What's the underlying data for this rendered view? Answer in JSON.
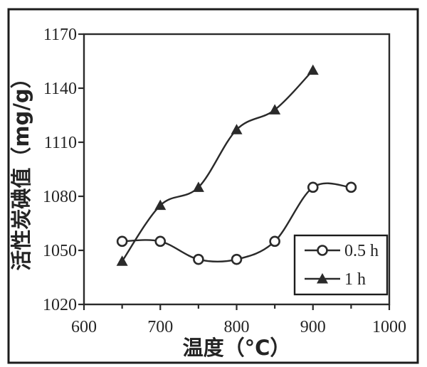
{
  "figure": {
    "background": "#ffffff",
    "frame_color": "#1c1c1c",
    "line_color": "#2a2a2a",
    "text_color": "#242424"
  },
  "chart_data": {
    "type": "line",
    "title": "",
    "xlabel": "温度（°C）",
    "ylabel": "活性炭碘值（mg/g）",
    "xlim": [
      600,
      1000
    ],
    "ylim": [
      1020,
      1170
    ],
    "xticks_major": [
      600,
      700,
      800,
      900,
      1000
    ],
    "xticks_minor": [
      650,
      750,
      850,
      950
    ],
    "yticks": [
      1020,
      1050,
      1080,
      1110,
      1140,
      1170
    ],
    "grid": false,
    "smooth": true,
    "legend_position": "inside-lower-right",
    "series": [
      {
        "name": "0.5 h",
        "marker": "open-circle",
        "x": [
          650,
          700,
          750,
          800,
          850,
          900,
          950
        ],
        "y": [
          1055,
          1055,
          1045,
          1045,
          1055,
          1085,
          1085
        ]
      },
      {
        "name": "1 h",
        "marker": "filled-triangle",
        "x": [
          650,
          700,
          750,
          800,
          850,
          900
        ],
        "y": [
          1044,
          1075,
          1085,
          1117,
          1128,
          1150
        ]
      }
    ]
  }
}
